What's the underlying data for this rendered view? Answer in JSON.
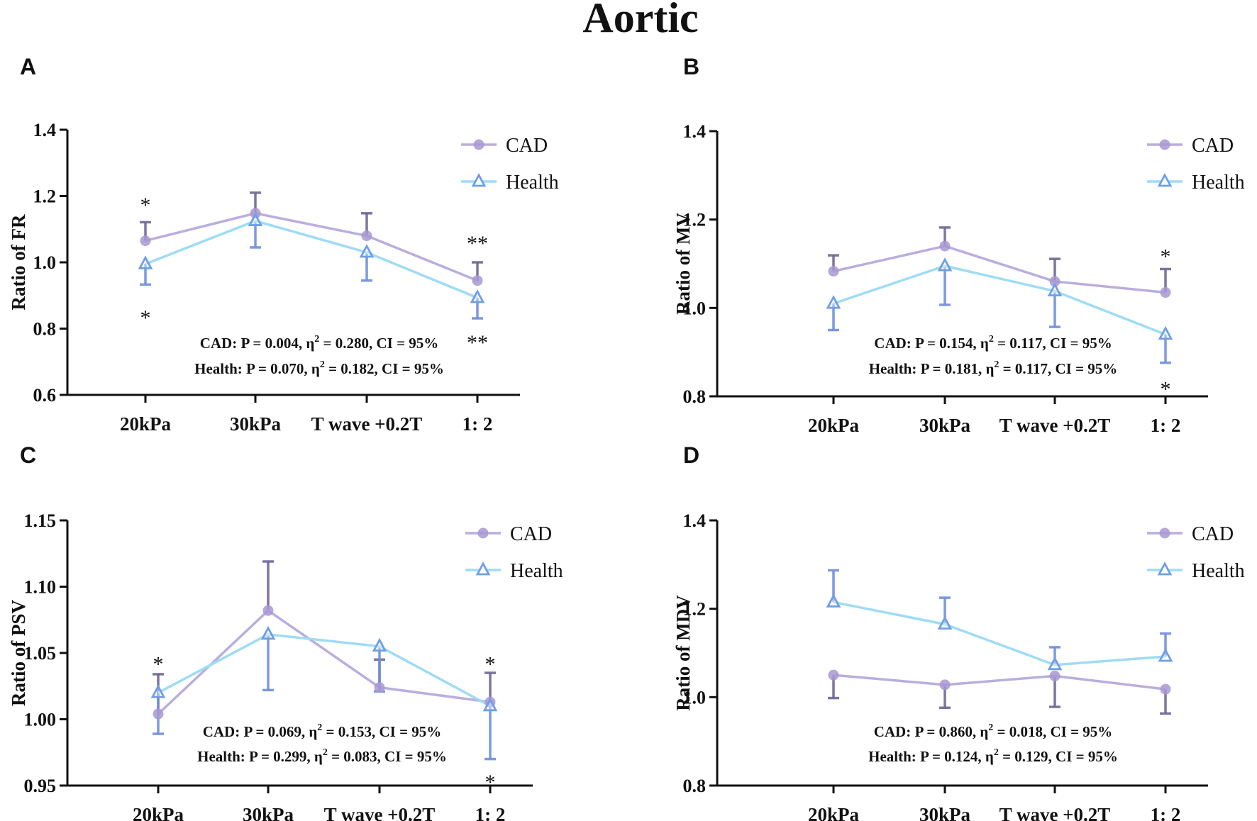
{
  "figure": {
    "title": "Aortic",
    "colors": {
      "cad": "#b9aedd",
      "cad_point": "#a898d2",
      "cad_err": "#6f6794",
      "health": "#9edcf4",
      "health_marker": "#6f9ee6",
      "health_err": "#6f8fdc",
      "axis": "#111111"
    }
  },
  "chart_data": [
    {
      "panel_letter": "A",
      "type": "line",
      "ylabel": "Ratio of FR",
      "categories": [
        "20kPa",
        "30kPa",
        "T wave +0.2T",
        "1: 2"
      ],
      "ylim": [
        0.6,
        1.4
      ],
      "yticks": [
        "0.6",
        "0.8",
        "1.0",
        "1.2",
        "1.4"
      ],
      "series": [
        {
          "name": "CAD",
          "values": [
            1.065,
            1.148,
            1.08,
            0.945
          ],
          "err": [
            0.056,
            0.062,
            0.068,
            0.055
          ],
          "err_dir": "up"
        },
        {
          "name": "Health",
          "values": [
            0.995,
            1.125,
            1.03,
            0.893
          ],
          "err": [
            0.062,
            0.08,
            0.085,
            0.062
          ],
          "err_dir": "down"
        }
      ],
      "stats": [
        {
          "label": "CAD:",
          "text": " P = 0.004, η",
          "sup": "2",
          "rest": " = 0.280, CI = 95%"
        },
        {
          "label": "Health:",
          "text": " P = 0.070, η",
          "sup": "2",
          "rest": " = 0.182, CI = 95%"
        }
      ],
      "annotations": [
        {
          "text": "*",
          "cat": 0,
          "y": 1.19
        },
        {
          "text": "*",
          "cat": 0,
          "y": 0.85
        },
        {
          "text": "**",
          "cat": 3,
          "y": 1.075
        },
        {
          "text": "**",
          "cat": 3,
          "y": 0.775
        }
      ]
    },
    {
      "panel_letter": "B",
      "type": "line",
      "ylabel": "Ratio of MV",
      "categories": [
        "20kPa",
        "30kPa",
        "T wave +0.2T",
        "1: 2"
      ],
      "ylim": [
        0.8,
        1.4
      ],
      "yticks": [
        "0.8",
        "1.0",
        "1.2",
        "1.4"
      ],
      "series": [
        {
          "name": "CAD",
          "values": [
            1.083,
            1.14,
            1.06,
            1.035
          ],
          "err": [
            0.036,
            0.042,
            0.051,
            0.053
          ],
          "err_dir": "up"
        },
        {
          "name": "Health",
          "values": [
            1.01,
            1.095,
            1.038,
            0.94
          ],
          "err": [
            0.06,
            0.088,
            0.081,
            0.064
          ],
          "err_dir": "down"
        }
      ],
      "stats": [
        {
          "label": "CAD:",
          "text": " P = 0.154, η",
          "sup": "2",
          "rest": " = 0.117, CI = 95%"
        },
        {
          "label": "Health:",
          "text": " P = 0.181, η",
          "sup": "2",
          "rest": " = 0.117, CI = 95%"
        }
      ],
      "annotations": [
        {
          "text": "*",
          "cat": 3,
          "y": 1.13
        },
        {
          "text": "*",
          "cat": 3,
          "y": 0.83
        }
      ]
    },
    {
      "panel_letter": "C",
      "type": "line",
      "ylabel": "Ratio of PSV",
      "categories": [
        "20kPa",
        "30kPa",
        "T wave +0.2T",
        "1: 2"
      ],
      "ylim": [
        0.95,
        1.15
      ],
      "yticks": [
        "0.95",
        "1.00",
        "1.05",
        "1.10",
        "1.15"
      ],
      "series": [
        {
          "name": "CAD",
          "values": [
            1.004,
            1.082,
            1.024,
            1.013
          ],
          "err": [
            0.03,
            0.037,
            0.021,
            0.022
          ],
          "err_dir": "up"
        },
        {
          "name": "Health",
          "values": [
            1.02,
            1.064,
            1.055,
            1.01
          ],
          "err": [
            0.031,
            0.042,
            0.034,
            0.04
          ],
          "err_dir": "down"
        }
      ],
      "stats": [
        {
          "label": "CAD:",
          "text": " P = 0.069, η",
          "sup": "2",
          "rest": " = 0.153, CI = 95%"
        },
        {
          "label": "Health:",
          "text": " P = 0.299, η",
          "sup": "2",
          "rest": " = 0.083, CI = 95%"
        }
      ],
      "annotations": [
        {
          "text": "*",
          "cat": 0,
          "y": 1.046
        },
        {
          "text": "*",
          "cat": 3,
          "y": 1.046
        },
        {
          "text": "*",
          "cat": 3,
          "y": 0.957
        }
      ]
    },
    {
      "panel_letter": "D",
      "type": "line",
      "ylabel": "Ratio of MDV",
      "categories": [
        "20kPa",
        "30kPa",
        "T wave +0.2T",
        "1: 2"
      ],
      "ylim": [
        0.8,
        1.4
      ],
      "yticks": [
        "0.8",
        "1.0",
        "1.2",
        "1.4"
      ],
      "series": [
        {
          "name": "CAD",
          "values": [
            1.05,
            1.028,
            1.048,
            1.018
          ],
          "err": [
            0.052,
            0.052,
            0.07,
            0.055
          ],
          "err_dir": "down"
        },
        {
          "name": "Health",
          "values": [
            1.215,
            1.165,
            1.073,
            1.092
          ],
          "err": [
            0.072,
            0.06,
            0.04,
            0.052
          ],
          "err_dir": "up"
        }
      ],
      "stats": [
        {
          "label": "CAD:",
          "text": " P = 0.860, η",
          "sup": "2",
          "rest": " = 0.018, CI = 95%"
        },
        {
          "label": "Health:",
          "text": " P = 0.124, η",
          "sup": "2",
          "rest": " = 0.129, CI = 95%"
        }
      ],
      "annotations": []
    }
  ]
}
